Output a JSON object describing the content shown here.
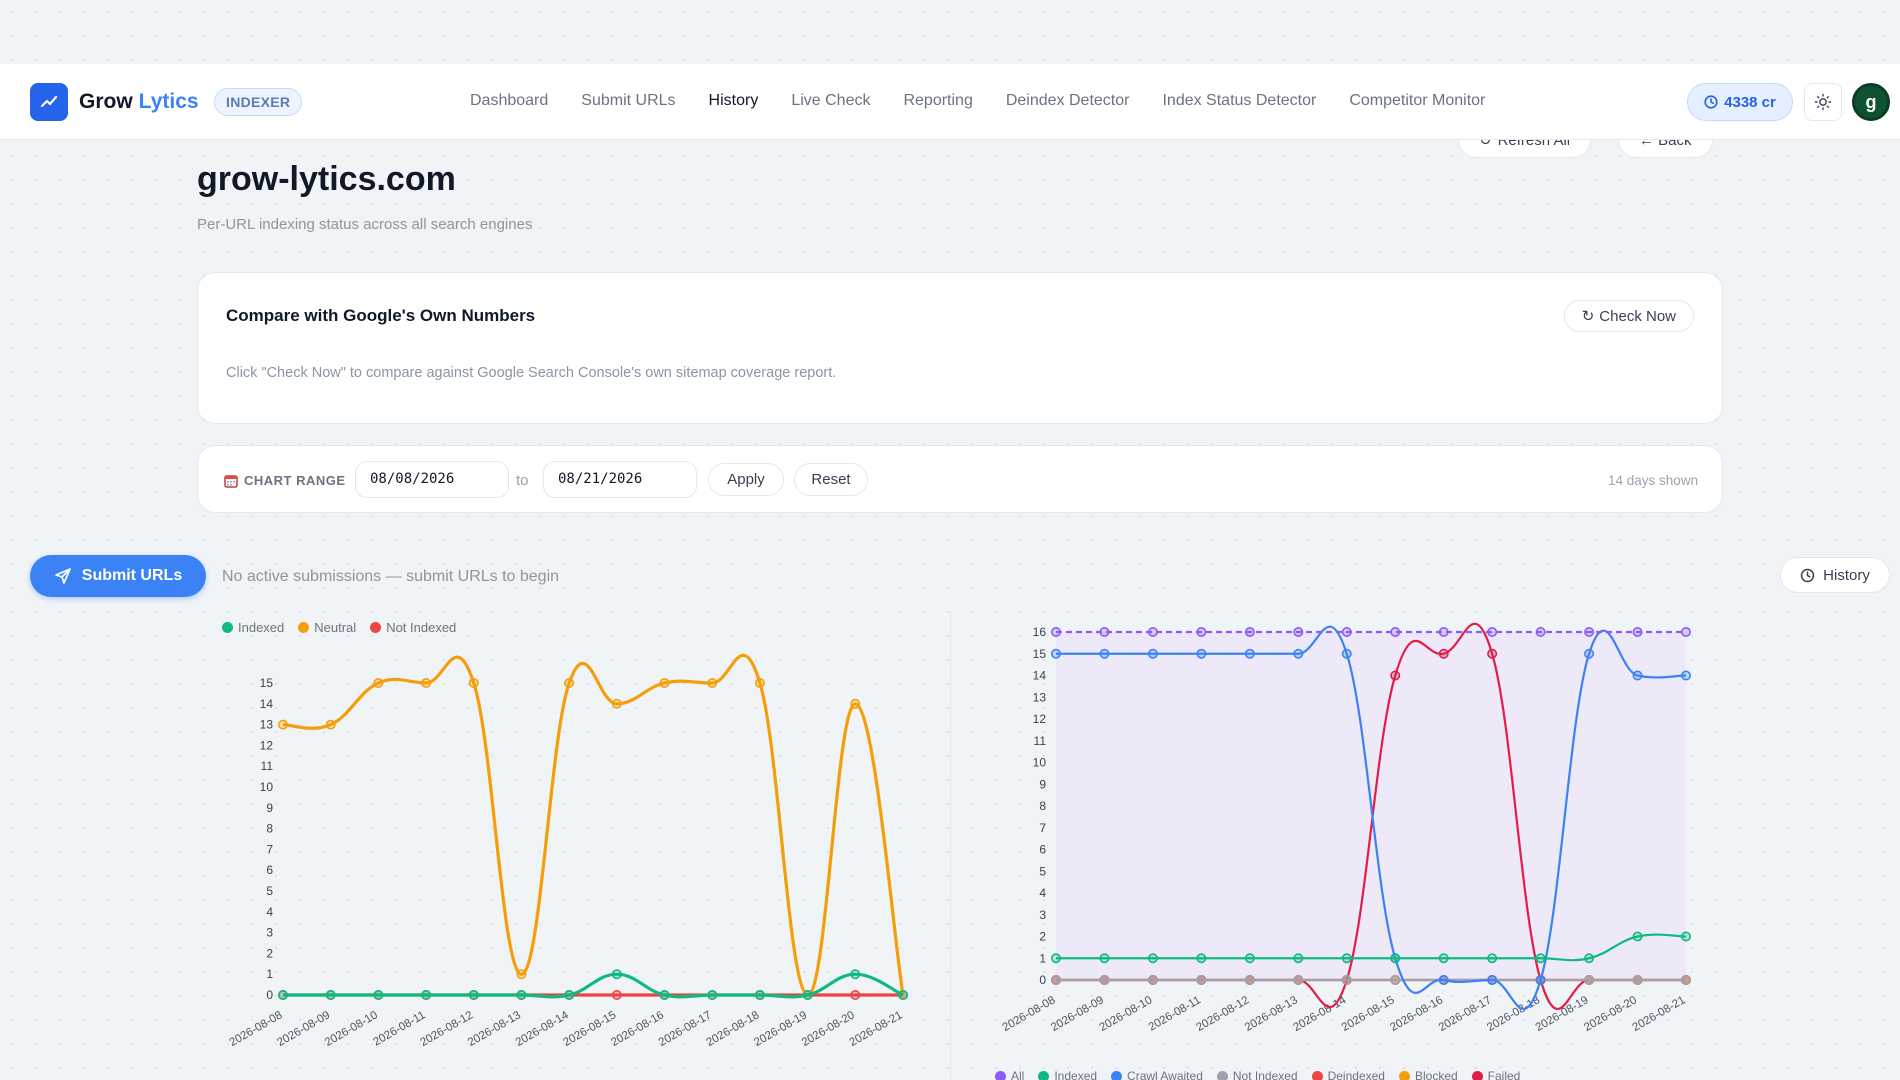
{
  "nav": {
    "brand_part1": "Grow",
    "brand_part2": "Lytics",
    "badge": "INDEXER",
    "links": [
      "Dashboard",
      "Submit URLs",
      "History",
      "Live Check",
      "Reporting",
      "Deindex Detector",
      "Index Status Detector",
      "Competitor Monitor"
    ],
    "active": "History",
    "credits": "4338 cr",
    "avatar_initial": "g"
  },
  "header": {
    "refresh_all": "Refresh All",
    "back": "← Back",
    "title": "grow-lytics.com",
    "subtitle": "Per-URL indexing status across all search engines"
  },
  "compare": {
    "title": "Compare with Google's Own Numbers",
    "check_now": "Check Now",
    "description": "Click \"Check Now\" to compare against Google Search Console's own sitemap coverage report."
  },
  "range": {
    "label": "CHART RANGE",
    "from": "08/08/2026",
    "to_label": "to",
    "to": "08/21/2026",
    "apply": "Apply",
    "reset": "Reset",
    "days_shown": "14 days shown"
  },
  "submission_bar": {
    "submit_button": "Submit URLs",
    "status_text": "No active submissions — submit URLs to begin",
    "history_button": "History"
  },
  "colors": {
    "accent": "#3b82f6",
    "indexed": "#10b981",
    "neutral": "#f59e0b",
    "not_indexed": "#ef4444",
    "all": "#8b5cf6",
    "crawl_awaited": "#3b82f6",
    "not_indexed_gray": "#9ca3af",
    "deindexed": "#ef4444",
    "blocked": "#f59e0b",
    "failed": "#e11d48"
  },
  "chart_data": [
    {
      "type": "line",
      "categories": [
        "2026-08-08",
        "2026-08-09",
        "2026-08-10",
        "2026-08-11",
        "2026-08-12",
        "2026-08-13",
        "2026-08-14",
        "2026-08-15",
        "2026-08-16",
        "2026-08-17",
        "2026-08-18",
        "2026-08-19",
        "2026-08-20",
        "2026-08-21"
      ],
      "ylim": [
        0,
        15
      ],
      "yticks": [
        0,
        1,
        2,
        3,
        4,
        5,
        6,
        7,
        8,
        9,
        10,
        11,
        12,
        13,
        14,
        15
      ],
      "legend": "top-left",
      "series": [
        {
          "name": "Indexed",
          "color": "#10b981",
          "values": [
            0,
            0,
            0,
            0,
            0,
            0,
            0,
            1,
            0,
            0,
            0,
            0,
            1,
            0
          ]
        },
        {
          "name": "Neutral",
          "color": "#f59e0b",
          "values": [
            13,
            13,
            15,
            15,
            15,
            1,
            15,
            14,
            15,
            15,
            15,
            0,
            14,
            0
          ]
        },
        {
          "name": "Not Indexed",
          "color": "#ef4444",
          "values": [
            0,
            0,
            0,
            0,
            0,
            0,
            0,
            0,
            0,
            0,
            0,
            0,
            0,
            0
          ]
        }
      ]
    },
    {
      "type": "line",
      "categories": [
        "2026-08-08",
        "2026-08-09",
        "2026-08-10",
        "2026-08-11",
        "2026-08-12",
        "2026-08-13",
        "2026-08-14",
        "2026-08-15",
        "2026-08-16",
        "2026-08-17",
        "2026-08-18",
        "2026-08-19",
        "2026-08-20",
        "2026-08-21"
      ],
      "ylim": [
        0,
        16
      ],
      "yticks": [
        0,
        1,
        2,
        3,
        4,
        5,
        6,
        7,
        8,
        9,
        10,
        11,
        12,
        13,
        14,
        15,
        16
      ],
      "legend": "bottom",
      "series": [
        {
          "name": "All",
          "color": "#8b5cf6",
          "dashed": true,
          "values": [
            16,
            16,
            16,
            16,
            16,
            16,
            16,
            16,
            16,
            16,
            16,
            16,
            16,
            16
          ]
        },
        {
          "name": "Indexed",
          "color": "#10b981",
          "values": [
            1,
            1,
            1,
            1,
            1,
            1,
            1,
            1,
            1,
            1,
            1,
            1,
            2,
            2
          ]
        },
        {
          "name": "Crawl Awaited",
          "color": "#3b82f6",
          "values": [
            15,
            15,
            15,
            15,
            15,
            15,
            15,
            1,
            0,
            0,
            0,
            15,
            14,
            14
          ]
        },
        {
          "name": "Not Indexed",
          "color": "#9ca3af",
          "values": [
            0,
            0,
            0,
            0,
            0,
            0,
            0,
            0,
            0,
            0,
            0,
            0,
            0,
            0
          ]
        },
        {
          "name": "Deindexed",
          "color": "#ef4444",
          "values": [
            0,
            0,
            0,
            0,
            0,
            0,
            0,
            0,
            0,
            0,
            0,
            0,
            0,
            0
          ]
        },
        {
          "name": "Blocked",
          "color": "#f59e0b",
          "values": [
            0,
            0,
            0,
            0,
            0,
            0,
            0,
            0,
            0,
            0,
            0,
            0,
            0,
            0
          ]
        },
        {
          "name": "Failed",
          "color": "#e11d48",
          "values": [
            0,
            0,
            0,
            0,
            0,
            0,
            0,
            14,
            15,
            15,
            0,
            0,
            0,
            0
          ]
        }
      ]
    }
  ]
}
